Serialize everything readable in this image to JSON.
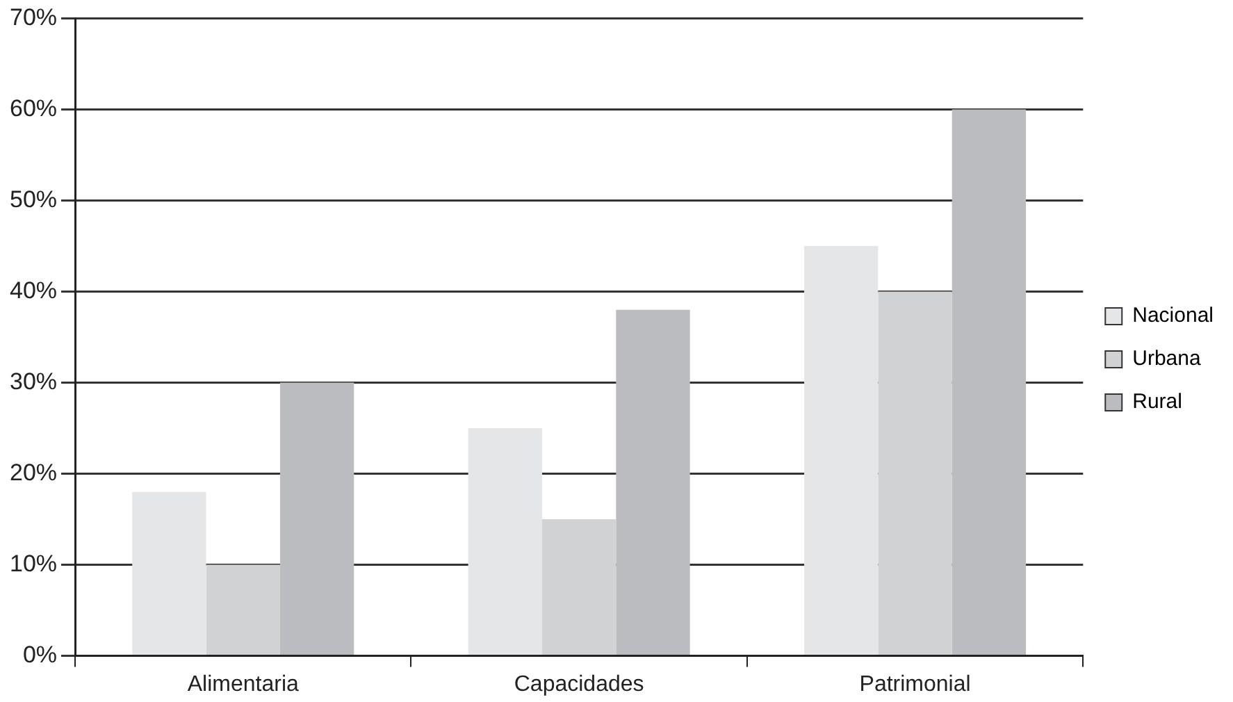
{
  "chart_data": {
    "type": "bar",
    "categories": [
      "Alimentaria",
      "Capacidades",
      "Patrimonial"
    ],
    "series": [
      {
        "name": "Nacional",
        "color": "#e5e6e8",
        "values": [
          18,
          25,
          45
        ]
      },
      {
        "name": "Urbana",
        "color": "#d1d2d4",
        "values": [
          10,
          15,
          40
        ]
      },
      {
        "name": "Rural",
        "color": "#bbbcbf",
        "values": [
          30,
          38,
          60
        ]
      }
    ],
    "ylim": [
      0,
      70
    ],
    "yticks": [
      {
        "value": 0,
        "label": "0%"
      },
      {
        "value": 10,
        "label": "10%"
      },
      {
        "value": 20,
        "label": "20%"
      },
      {
        "value": 30,
        "label": "30%"
      },
      {
        "value": 40,
        "label": "40%"
      },
      {
        "value": 50,
        "label": "50%"
      },
      {
        "value": 60,
        "label": "60%"
      },
      {
        "value": 70,
        "label": "70%"
      }
    ],
    "grid": "y",
    "legend": "right"
  }
}
